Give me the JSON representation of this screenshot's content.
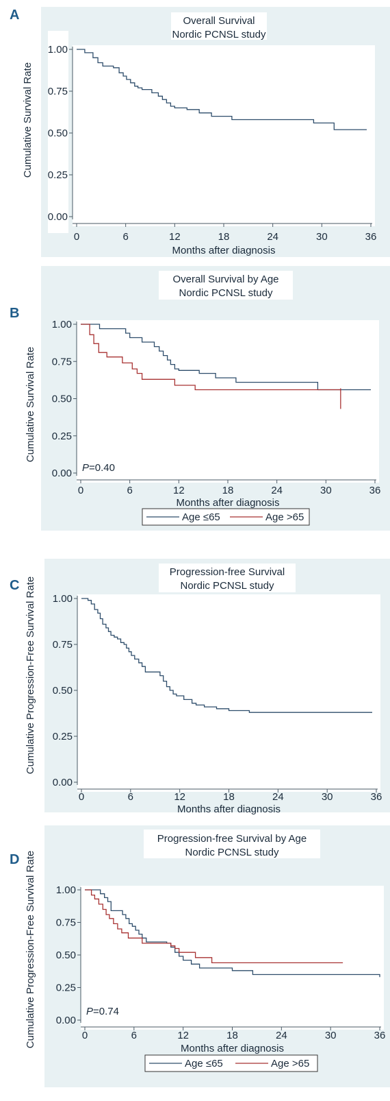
{
  "colors": {
    "background": "#e8f1f3",
    "plot_bg": "#ffffff",
    "axis": "#4a5a66",
    "text": "#1a2a3a",
    "panel_label": "#1f5c8a"
  },
  "chart_data": [
    {
      "panel_label": "A",
      "type": "line",
      "step": true,
      "title": [
        "Overall Survival",
        "Nordic PCNSL study"
      ],
      "xlabel": "Months after diagnosis",
      "ylabel": "Cumulative Survival Rate",
      "xlim": [
        0,
        36
      ],
      "ylim": [
        0,
        1
      ],
      "xticks": [
        "0",
        "6",
        "12",
        "18",
        "24",
        "30",
        "36"
      ],
      "yticks": [
        "0.00",
        "0.25",
        "0.50",
        "0.75",
        "1.00"
      ],
      "series": [
        {
          "color": "#2e4d6b",
          "x": [
            0,
            1,
            2,
            2.6,
            3.2,
            4.5,
            5.2,
            5.7,
            6.1,
            6.6,
            7.1,
            7.5,
            8,
            9.2,
            10,
            10.5,
            11,
            11.5,
            12,
            13.5,
            15,
            16.5,
            19,
            29,
            31.5,
            35.5
          ],
          "y": [
            1,
            0.98,
            0.95,
            0.92,
            0.9,
            0.89,
            0.86,
            0.84,
            0.82,
            0.8,
            0.78,
            0.77,
            0.76,
            0.74,
            0.72,
            0.7,
            0.68,
            0.66,
            0.65,
            0.64,
            0.62,
            0.6,
            0.58,
            0.56,
            0.52,
            0.52
          ]
        }
      ]
    },
    {
      "panel_label": "B",
      "type": "line",
      "step": true,
      "title": [
        "Overall Survival by Age",
        "Nordic PCNSL study"
      ],
      "xlabel": "Months after diagnosis",
      "ylabel": "Cumulative Survival Rate",
      "xlim": [
        0,
        36
      ],
      "ylim": [
        0,
        1
      ],
      "xticks": [
        "0",
        "6",
        "12",
        "18",
        "24",
        "30",
        "36"
      ],
      "yticks": [
        "0.00",
        "0.25",
        "0.50",
        "0.75",
        "1.00"
      ],
      "p_prefix": "P",
      "p_value": "=0.40",
      "series": [
        {
          "name": "Age ≤65",
          "color": "#2e4d6b",
          "x": [
            0,
            1.5,
            2.3,
            5.5,
            6,
            7.5,
            9,
            9.6,
            10.1,
            10.6,
            11,
            11.5,
            12,
            14.5,
            16.5,
            19,
            29,
            35.5
          ],
          "y": [
            1,
            1,
            0.97,
            0.94,
            0.91,
            0.88,
            0.85,
            0.82,
            0.79,
            0.76,
            0.73,
            0.7,
            0.69,
            0.67,
            0.64,
            0.61,
            0.56,
            0.56
          ]
        },
        {
          "name": "Age >65",
          "color": "#a83232",
          "x": [
            0,
            1.1,
            1.6,
            2.2,
            3.2,
            5.1,
            6.3,
            6.9,
            7.5,
            11.5,
            14,
            31.8
          ],
          "y": [
            1,
            0.93,
            0.87,
            0.81,
            0.78,
            0.74,
            0.7,
            0.67,
            0.63,
            0.59,
            0.56,
            0.56
          ]
        }
      ],
      "censor": [
        {
          "series": 1,
          "x": 31.8,
          "y": 0.56
        }
      ]
    },
    {
      "panel_label": "C",
      "type": "line",
      "step": true,
      "title": [
        "Progression-free Survival",
        "Nordic PCNSL study"
      ],
      "xlabel": "Months after diagnosis",
      "ylabel": "Cumulative Progression-Free Survival Rate",
      "xlim": [
        0,
        36
      ],
      "ylim": [
        0,
        1
      ],
      "xticks": [
        "0",
        "6",
        "12",
        "18",
        "24",
        "30",
        "36"
      ],
      "yticks": [
        "0.00",
        "0.25",
        "0.50",
        "0.75",
        "1.00"
      ],
      "series": [
        {
          "color": "#2e4d6b",
          "x": [
            0,
            0.8,
            1.2,
            1.6,
            2,
            2.3,
            2.6,
            3,
            3.3,
            3.6,
            4,
            4.4,
            4.8,
            5.2,
            5.5,
            5.8,
            6.1,
            6.5,
            7,
            7.4,
            7.8,
            9.6,
            10,
            10.4,
            10.8,
            11.2,
            11.6,
            12.5,
            13.5,
            14,
            15,
            16.5,
            18,
            20.5,
            35.5
          ],
          "y": [
            1,
            0.99,
            0.97,
            0.94,
            0.92,
            0.89,
            0.86,
            0.84,
            0.82,
            0.8,
            0.79,
            0.78,
            0.76,
            0.75,
            0.73,
            0.71,
            0.69,
            0.67,
            0.65,
            0.63,
            0.6,
            0.58,
            0.55,
            0.52,
            0.5,
            0.48,
            0.47,
            0.45,
            0.43,
            0.42,
            0.41,
            0.4,
            0.39,
            0.38,
            0.38
          ]
        }
      ]
    },
    {
      "panel_label": "D",
      "type": "line",
      "step": true,
      "title": [
        "Progression-free Survival by Age",
        "Nordic PCNSL study"
      ],
      "xlabel": "Months after diagnosis",
      "ylabel": "Cumulative Progression-Free Survival Rate",
      "xlim": [
        0,
        36
      ],
      "ylim": [
        0,
        1
      ],
      "xticks": [
        "0",
        "6",
        "12",
        "18",
        "24",
        "30",
        "36"
      ],
      "yticks": [
        "0.00",
        "0.25",
        "0.50",
        "0.75",
        "1.00"
      ],
      "p_prefix": "P",
      "p_value": "=0.74",
      "series": [
        {
          "name": "Age ≤65",
          "color": "#2e4d6b",
          "x": [
            0,
            1.5,
            1.9,
            2.4,
            2.8,
            3.2,
            4.6,
            5,
            5.4,
            5.8,
            6.2,
            6.6,
            7,
            7.5,
            10,
            10.5,
            11,
            11.5,
            12,
            13,
            14,
            18,
            20.5,
            36
          ],
          "y": [
            1,
            1,
            0.97,
            0.94,
            0.91,
            0.84,
            0.81,
            0.78,
            0.74,
            0.72,
            0.69,
            0.66,
            0.63,
            0.6,
            0.59,
            0.56,
            0.52,
            0.49,
            0.46,
            0.43,
            0.4,
            0.38,
            0.35,
            0.33
          ]
        },
        {
          "name": "Age >65",
          "color": "#a83232",
          "x": [
            0,
            0.8,
            1.2,
            1.7,
            2.2,
            2.6,
            3,
            3.5,
            4,
            4.5,
            5.3,
            7,
            10,
            10.5,
            11,
            11.5,
            13.5,
            15.5,
            31.5
          ],
          "y": [
            1,
            0.96,
            0.93,
            0.89,
            0.85,
            0.81,
            0.78,
            0.74,
            0.7,
            0.67,
            0.63,
            0.59,
            0.59,
            0.57,
            0.55,
            0.52,
            0.48,
            0.44,
            0.44
          ]
        }
      ]
    }
  ]
}
